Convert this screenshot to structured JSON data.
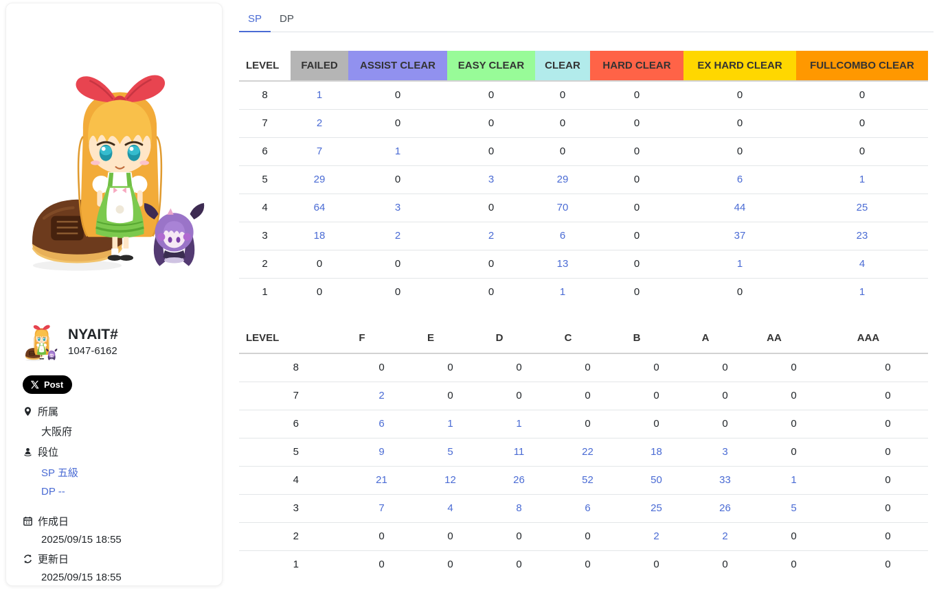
{
  "profile": {
    "name": "NYAIT#",
    "player_id": "1047-6162",
    "post_button_label": "Post",
    "affiliation": {
      "label": "所属",
      "value": "大阪府"
    },
    "dan": {
      "label": "段位",
      "sp": "SP 五級",
      "dp": "DP --"
    },
    "created": {
      "label": "作成日",
      "value": "2025/09/15 18:55"
    },
    "updated": {
      "label": "更新日",
      "value": "2025/09/15 18:55"
    }
  },
  "icons": {
    "x-logo": "X",
    "location-pin": "map-pin",
    "dan-rank": "person-on-pedestal",
    "calendar": "calendar",
    "refresh": "circular-arrows"
  },
  "colors": {
    "link": "#4a6bd4",
    "tab_active": "#4a6bd4"
  },
  "tabs": {
    "sp": "SP",
    "dp": "DP"
  },
  "lamp_table": {
    "level_header": "LEVEL",
    "columns": [
      {
        "label": "FAILED",
        "bg": "#b5b5b5"
      },
      {
        "label": "ASSIST CLEAR",
        "bg": "#9191ef"
      },
      {
        "label": "EASY CLEAR",
        "bg": "#98fb98"
      },
      {
        "label": "CLEAR",
        "bg": "#b2ebeb"
      },
      {
        "label": "HARD CLEAR",
        "bg": "#ff6347"
      },
      {
        "label": "EX HARD CLEAR",
        "bg": "#ffd700"
      },
      {
        "label": "FULLCOMBO CLEAR",
        "bg": "#ff9800"
      }
    ],
    "rows": [
      {
        "level": 8,
        "values": [
          1,
          0,
          0,
          0,
          0,
          0,
          0
        ]
      },
      {
        "level": 7,
        "values": [
          2,
          0,
          0,
          0,
          0,
          0,
          0
        ]
      },
      {
        "level": 6,
        "values": [
          7,
          1,
          0,
          0,
          0,
          0,
          0
        ]
      },
      {
        "level": 5,
        "values": [
          29,
          0,
          3,
          29,
          0,
          6,
          1
        ]
      },
      {
        "level": 4,
        "values": [
          64,
          3,
          0,
          70,
          0,
          44,
          25
        ]
      },
      {
        "level": 3,
        "values": [
          18,
          2,
          2,
          6,
          0,
          37,
          23
        ]
      },
      {
        "level": 2,
        "values": [
          0,
          0,
          0,
          13,
          0,
          1,
          4
        ]
      },
      {
        "level": 1,
        "values": [
          0,
          0,
          0,
          1,
          0,
          0,
          1
        ]
      }
    ]
  },
  "grade_table": {
    "level_header": "LEVEL",
    "columns": [
      "F",
      "E",
      "D",
      "C",
      "B",
      "A",
      "AA",
      "AAA"
    ],
    "rows": [
      {
        "level": 8,
        "values": [
          0,
          0,
          0,
          0,
          0,
          0,
          0,
          0
        ]
      },
      {
        "level": 7,
        "values": [
          2,
          0,
          0,
          0,
          0,
          0,
          0,
          0
        ]
      },
      {
        "level": 6,
        "values": [
          6,
          1,
          1,
          0,
          0,
          0,
          0,
          0
        ]
      },
      {
        "level": 5,
        "values": [
          9,
          5,
          11,
          22,
          18,
          3,
          0,
          0
        ]
      },
      {
        "level": 4,
        "values": [
          21,
          12,
          26,
          52,
          50,
          33,
          1,
          0
        ]
      },
      {
        "level": 3,
        "values": [
          7,
          4,
          8,
          6,
          25,
          26,
          5,
          0
        ]
      },
      {
        "level": 2,
        "values": [
          0,
          0,
          0,
          0,
          2,
          2,
          0,
          0
        ]
      },
      {
        "level": 1,
        "values": [
          0,
          0,
          0,
          0,
          0,
          0,
          0,
          0
        ]
      }
    ]
  }
}
